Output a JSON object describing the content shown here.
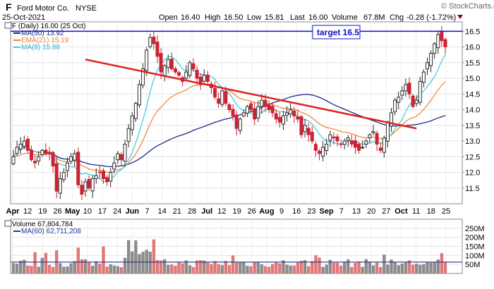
{
  "header": {
    "symbol": "F",
    "company": "Ford Motor Co.",
    "exchange": "NYSE",
    "date": "25-Oct-2021",
    "brand": "© StockCharts.com",
    "quote": [
      {
        "label": "Open",
        "value": "16.40"
      },
      {
        "label": "High",
        "value": "16.50"
      },
      {
        "label": "Low",
        "value": "15.81"
      },
      {
        "label": "Last",
        "value": "16.00"
      },
      {
        "label": "Volume",
        "value": "67.8M"
      },
      {
        "label": "Chg",
        "value": "-0.28 (-1.72%)"
      }
    ]
  },
  "legend": {
    "price": "F (Daily) 16.00 (25 Oct)",
    "ma50": "MA(50) 13.92",
    "ema21": "EMA(21) 15.19",
    "ma8": "MA(8) 15.88",
    "volume": "Volume 67,804,784",
    "vol_ma60": "MA(60) 62,711,208"
  },
  "annotation": "target 16.5",
  "colors": {
    "up": "#2b2b2b",
    "down": "#cc2233",
    "ma50": "#1a2a8a",
    "ema21": "#f08030",
    "ma8": "#33ccdd",
    "target": "#1010c8",
    "trend": "#dd2222",
    "vol_up": "#8c8c8c",
    "vol_down": "#e07878",
    "vol_ma": "#223399"
  },
  "chart_data": [
    {
      "type": "candlestick",
      "title": "F (Daily) 16.00 (25 Oct)",
      "ylim": [
        11.0,
        16.8
      ],
      "yticks": [
        11.5,
        12.0,
        12.5,
        13.0,
        13.5,
        14.0,
        14.5,
        15.0,
        15.5,
        16.0,
        16.5
      ],
      "xticks": [
        "Apr",
        "12",
        "19",
        "26",
        "May",
        "10",
        "17",
        "24",
        "Jun",
        "7",
        "14",
        "21",
        "28",
        "Jul",
        "12",
        "19",
        "26",
        "Aug",
        "9",
        "16",
        "23",
        "Sep",
        "7",
        "13",
        "20",
        "27",
        "Oct",
        "11",
        "18",
        "25"
      ],
      "target": 16.5,
      "trendline": {
        "from": [
          20,
          15.6
        ],
        "to": [
          112,
          13.4
        ]
      },
      "close": [
        12.5,
        12.8,
        12.9,
        13.0,
        12.7,
        12.4,
        12.3,
        12.5,
        12.7,
        12.6,
        12.6,
        12.2,
        11.4,
        11.8,
        12.0,
        12.3,
        12.5,
        12.6,
        11.6,
        11.3,
        11.7,
        11.5,
        11.8,
        11.9,
        12.0,
        11.8,
        11.7,
        12.0,
        12.3,
        12.6,
        12.4,
        12.9,
        13.4,
        13.8,
        14.2,
        14.8,
        15.3,
        15.9,
        16.3,
        16.1,
        15.7,
        15.2,
        15.4,
        15.6,
        15.3,
        15.2,
        15.1,
        14.9,
        15.2,
        15.5,
        15.3,
        15.0,
        14.8,
        15.1,
        14.9,
        14.7,
        14.4,
        14.2,
        14.6,
        14.2,
        14.0,
        13.8,
        13.4,
        13.7,
        13.9,
        14.1,
        14.0,
        13.7,
        14.1,
        14.3,
        14.1,
        14.0,
        13.9,
        13.7,
        13.6,
        13.8,
        13.9,
        14.0,
        13.8,
        13.7,
        13.2,
        13.5,
        13.2,
        13.0,
        12.7,
        12.6,
        12.8,
        12.9,
        13.2,
        13.1,
        13.0,
        12.9,
        13.0,
        13.1,
        12.9,
        12.8,
        12.7,
        12.8,
        13.0,
        13.2,
        13.3,
        12.9,
        12.7,
        13.1,
        13.6,
        13.9,
        14.3,
        14.4,
        14.6,
        14.8,
        14.5,
        14.1,
        14.3,
        14.9,
        15.2,
        15.5,
        15.8,
        16.1,
        16.4,
        16.2,
        16.0
      ],
      "volume_ylim": [
        0,
        300
      ],
      "volume_ticks": [
        50,
        100,
        150,
        200,
        250
      ],
      "volume_tick_labels": [
        "50M",
        "100M",
        "150M",
        "200M",
        "250M"
      ],
      "volume_ma60_level": 63
    }
  ]
}
